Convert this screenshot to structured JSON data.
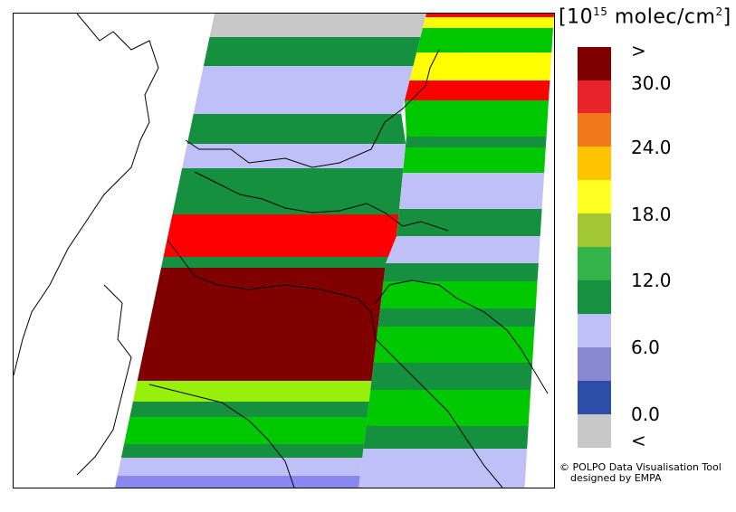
{
  "legend": {
    "unit_prefix": "[10",
    "unit_exponent": "15",
    "unit_suffix": " molec/cm",
    "unit_square": "2",
    "unit_close": "]",
    "colors": [
      "#7f0000",
      "#e8242a",
      "#f07a1a",
      "#ffc400",
      "#ffff22",
      "#a0c832",
      "#34b34a",
      "#17903f",
      "#c0c0f8",
      "#8888d0",
      "#2c4ea8",
      "#c8c8c8"
    ],
    "ticks": [
      {
        "label": ">"
      },
      {
        "label": "30.0"
      },
      {
        "label": "24.0"
      },
      {
        "label": "18.0"
      },
      {
        "label": "12.0"
      },
      {
        "label": "6.0"
      },
      {
        "label": "0.0"
      },
      {
        "label": "<"
      }
    ]
  },
  "credit": {
    "line1": "© POLPO Data Visualisation Tool",
    "line2": "designed by EMPA"
  },
  "map": {
    "class_colors": {
      "gray": "#c8c8c8",
      "lavender": "#c0c0f8",
      "blue": "#8888f0",
      "darkgreen": "#15903f",
      "green": "#00c800",
      "lime": "#96f00a",
      "yellow": "#ffff00",
      "red": "#ff0000",
      "maroon": "#800000"
    }
  }
}
